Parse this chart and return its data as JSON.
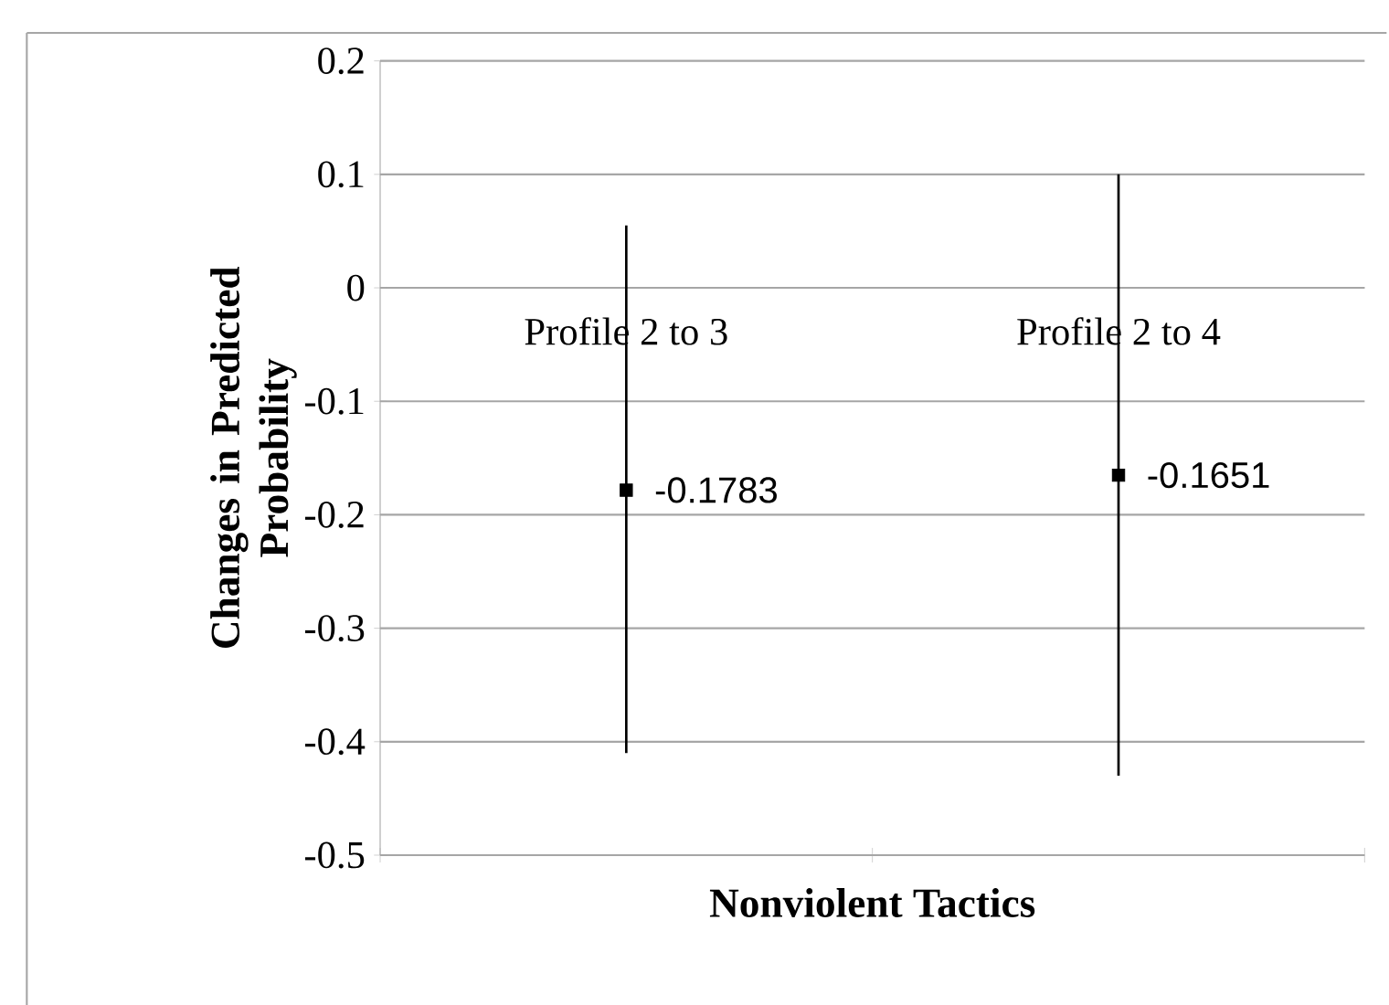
{
  "chart_data": {
    "type": "scatter",
    "xlabel": "Nonviolent Tactics",
    "ylabel": "Changes in Predicted Probability",
    "categories": [
      "Profile 2 to 3",
      "Profile 2 to 4"
    ],
    "values": [
      -0.1783,
      -0.1651
    ],
    "errors": [
      [
        -0.41,
        0.055
      ],
      [
        -0.43,
        0.1
      ]
    ],
    "color": "#000000",
    "marker": "square",
    "data_labels": true,
    "ylim": [
      -0.5,
      0.2
    ],
    "yticks": [
      -0.5,
      -0.4,
      -0.3,
      -0.2,
      -0.1,
      0,
      0.1,
      0.2
    ],
    "grid": "y"
  }
}
